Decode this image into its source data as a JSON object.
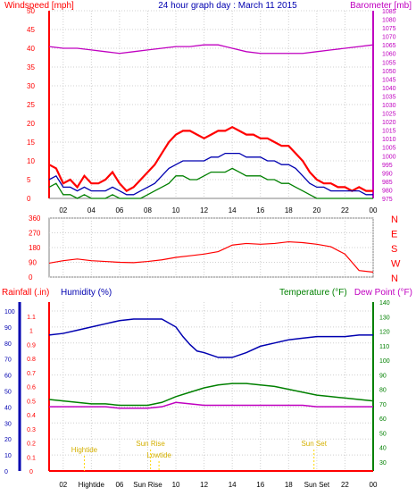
{
  "header": {
    "left": "Windspeed [mph]",
    "center": "24 hour graph day : March 11 2015",
    "right": "Barometer [mb]"
  },
  "colors": {
    "red": "#ff0000",
    "green": "#008000",
    "blue": "#0000b0",
    "magenta": "#c000c0",
    "yellow": "#ffd700",
    "grid": "#d0d0d0",
    "axis": "#808080"
  },
  "chart_data": [
    {
      "type": "line",
      "title": "24 hour graph day : March 11 2015",
      "xlabel": "",
      "ylabel": "Windspeed [mph]",
      "y2label": "Barometer [mb]",
      "xlim": [
        1,
        24
      ],
      "ylim": [
        0,
        50
      ],
      "y2lim": [
        975,
        1085
      ],
      "x_ticks": [
        "02",
        "04",
        "06",
        "08",
        "10",
        "12",
        "14",
        "16",
        "18",
        "20",
        "22",
        "00"
      ],
      "y_ticks": [
        0,
        5,
        10,
        15,
        20,
        25,
        30,
        35,
        40,
        45,
        50
      ],
      "y2_ticks": [
        975,
        980,
        985,
        990,
        995,
        1000,
        1005,
        1010,
        1015,
        1020,
        1025,
        1030,
        1035,
        1040,
        1045,
        1050,
        1055,
        1060,
        1065,
        1070,
        1075,
        1080,
        1085
      ],
      "grid": true,
      "series": [
        {
          "name": "Windspeed",
          "color": "#ff0000",
          "x": [
            1,
            1.5,
            2,
            2.5,
            3,
            3.5,
            4,
            4.5,
            5,
            5.5,
            6,
            6.5,
            7,
            7.5,
            8,
            8.5,
            9,
            9.5,
            10,
            10.5,
            11,
            11.5,
            12,
            12.5,
            13,
            13.5,
            14,
            14.5,
            15,
            15.5,
            16,
            16.5,
            17,
            17.5,
            18,
            18.5,
            19,
            19.5,
            20,
            20.5,
            21,
            21.5,
            22,
            22.5,
            23,
            23.5,
            24
          ],
          "values": [
            9,
            8,
            4,
            5,
            3,
            6,
            4,
            4,
            5,
            7,
            4,
            2,
            3,
            5,
            7,
            9,
            12,
            15,
            17,
            18,
            18,
            17,
            16,
            17,
            18,
            18,
            19,
            18,
            17,
            17,
            16,
            16,
            15,
            14,
            14,
            12,
            10,
            7,
            5,
            4,
            4,
            3,
            3,
            2,
            3,
            2,
            2
          ]
        },
        {
          "name": "Gust",
          "color": "#008000",
          "x": [
            1,
            1.5,
            2,
            2.5,
            3,
            3.5,
            4,
            4.5,
            5,
            5.5,
            6,
            6.5,
            7,
            7.5,
            8,
            8.5,
            9,
            9.5,
            10,
            10.5,
            11,
            11.5,
            12,
            12.5,
            13,
            13.5,
            14,
            14.5,
            15,
            15.5,
            16,
            16.5,
            17,
            17.5,
            18,
            18.5,
            19,
            19.5,
            20,
            20.5,
            21,
            21.5,
            22,
            22.5,
            23,
            23.5,
            24
          ],
          "values": [
            3,
            4,
            1,
            1,
            0,
            1,
            0,
            0,
            0,
            1,
            0,
            0,
            0,
            0,
            1,
            2,
            3,
            4,
            6,
            6,
            5,
            5,
            6,
            7,
            7,
            7,
            8,
            7,
            6,
            6,
            6,
            5,
            5,
            4,
            4,
            3,
            2,
            1,
            0,
            0,
            0,
            0,
            0,
            0,
            0,
            0,
            0
          ]
        },
        {
          "name": "Average",
          "color": "#0000b0",
          "x": [
            1,
            1.5,
            2,
            2.5,
            3,
            3.5,
            4,
            4.5,
            5,
            5.5,
            6,
            6.5,
            7,
            7.5,
            8,
            8.5,
            9,
            9.5,
            10,
            10.5,
            11,
            11.5,
            12,
            12.5,
            13,
            13.5,
            14,
            14.5,
            15,
            15.5,
            16,
            16.5,
            17,
            17.5,
            18,
            18.5,
            19,
            19.5,
            20,
            20.5,
            21,
            21.5,
            22,
            22.5,
            23,
            23.5,
            24
          ],
          "values": [
            5,
            6,
            3,
            3,
            2,
            3,
            2,
            2,
            2,
            3,
            2,
            1,
            1,
            2,
            3,
            4,
            6,
            8,
            9,
            10,
            10,
            10,
            10,
            11,
            11,
            12,
            12,
            12,
            11,
            11,
            11,
            10,
            10,
            9,
            9,
            8,
            6,
            4,
            3,
            3,
            2,
            2,
            2,
            2,
            2,
            1,
            1
          ]
        },
        {
          "name": "Barometer",
          "color": "#c000c0",
          "axis": "right",
          "x": [
            1,
            2,
            3,
            4,
            5,
            6,
            7,
            8,
            9,
            10,
            11,
            12,
            13,
            14,
            15,
            16,
            17,
            18,
            19,
            20,
            21,
            22,
            23,
            24
          ],
          "values": [
            1064,
            1063,
            1063,
            1062,
            1061,
            1060,
            1061,
            1062,
            1063,
            1064,
            1064,
            1065,
            1065,
            1063,
            1061,
            1060,
            1060,
            1060,
            1060,
            1061,
            1062,
            1063,
            1064,
            1065
          ]
        }
      ]
    },
    {
      "type": "line",
      "title": "",
      "ylabel": "",
      "ylim": [
        0,
        360
      ],
      "y_ticks": [
        0,
        90,
        180,
        270,
        360
      ],
      "compass": [
        "N",
        "W",
        "S",
        "E",
        "N"
      ],
      "series": [
        {
          "name": "Wind direction",
          "color": "#ff0000",
          "x": [
            1,
            2,
            3,
            4,
            5,
            6,
            7,
            8,
            9,
            10,
            11,
            12,
            13,
            14,
            15,
            16,
            17,
            18,
            19,
            20,
            21,
            22,
            23,
            24
          ],
          "values": [
            85,
            100,
            110,
            100,
            95,
            90,
            88,
            95,
            105,
            120,
            130,
            140,
            155,
            195,
            205,
            200,
            205,
            215,
            210,
            200,
            185,
            140,
            40,
            30
          ]
        }
      ]
    },
    {
      "type": "line",
      "title": "",
      "labels": {
        "rainfall": "Rainfall (.in)",
        "humidity": "Humidity (%)",
        "temperature": "Temperature (°F)",
        "dewpoint": "Dew Point (°F)"
      },
      "y_humidity_ticks": [
        0,
        10,
        20,
        30,
        40,
        50,
        60,
        70,
        80,
        90,
        100
      ],
      "y_rain_ticks": [
        0,
        0.1,
        0.2,
        0.3,
        0.4,
        0.5,
        0.6,
        0.7,
        0.8,
        0.9,
        1,
        1.1
      ],
      "y_temp_ticks": [
        30,
        40,
        50,
        60,
        70,
        80,
        90,
        100,
        110,
        120,
        130,
        140
      ],
      "ylim": [
        0,
        100
      ],
      "y2lim": [
        30,
        140
      ],
      "series": [
        {
          "name": "Humidity",
          "color": "#0000b0",
          "axis": "humidity",
          "x": [
            1,
            2,
            3,
            4,
            5,
            6,
            7,
            8,
            9,
            10,
            10.5,
            11,
            11.5,
            12,
            13,
            14,
            15,
            16,
            17,
            18,
            19,
            20,
            21,
            22,
            23,
            24
          ],
          "values": [
            85,
            86,
            88,
            90,
            92,
            94,
            95,
            95,
            95,
            90,
            84,
            79,
            75,
            74,
            71,
            71,
            74,
            78,
            80,
            82,
            83,
            84,
            84,
            84,
            85,
            85
          ]
        },
        {
          "name": "Temperature",
          "color": "#008000",
          "axis": "temperature",
          "x": [
            1,
            2,
            3,
            4,
            5,
            6,
            7,
            8,
            9,
            10,
            11,
            12,
            13,
            14,
            15,
            16,
            17,
            18,
            19,
            20,
            21,
            22,
            23,
            24
          ],
          "values": [
            73,
            72,
            71,
            70,
            70,
            69,
            69,
            69,
            71,
            75,
            78,
            81,
            83,
            84,
            84,
            83,
            82,
            80,
            78,
            76,
            75,
            74,
            73,
            72
          ]
        },
        {
          "name": "Dew Point",
          "color": "#c000c0",
          "axis": "temperature",
          "x": [
            1,
            2,
            3,
            4,
            5,
            6,
            7,
            8,
            9,
            10,
            11,
            12,
            13,
            14,
            15,
            16,
            17,
            18,
            19,
            20,
            21,
            22,
            23,
            24
          ],
          "values": [
            68,
            68,
            68,
            68,
            68,
            67,
            67,
            67,
            68,
            71,
            70,
            69,
            69,
            69,
            69,
            69,
            69,
            69,
            69,
            68,
            68,
            68,
            68,
            68
          ]
        },
        {
          "name": "Rainfall",
          "color": "#ff0000",
          "axis": "rainfall",
          "x": [
            1,
            24
          ],
          "values": [
            0,
            0
          ]
        }
      ],
      "annotations": [
        {
          "label": "Hightide",
          "x": 3.5
        },
        {
          "label": "Sun Rise",
          "x": 8.2
        },
        {
          "label": "Lowtide",
          "x": 8.8
        },
        {
          "label": "Sun Set",
          "x": 19.8
        }
      ],
      "bottom_x_ticks": [
        "02",
        "Hightide",
        "06",
        "Sun Rise",
        "10",
        "12",
        "14",
        "16",
        "18",
        "Sun Set",
        "22",
        "00"
      ]
    }
  ]
}
